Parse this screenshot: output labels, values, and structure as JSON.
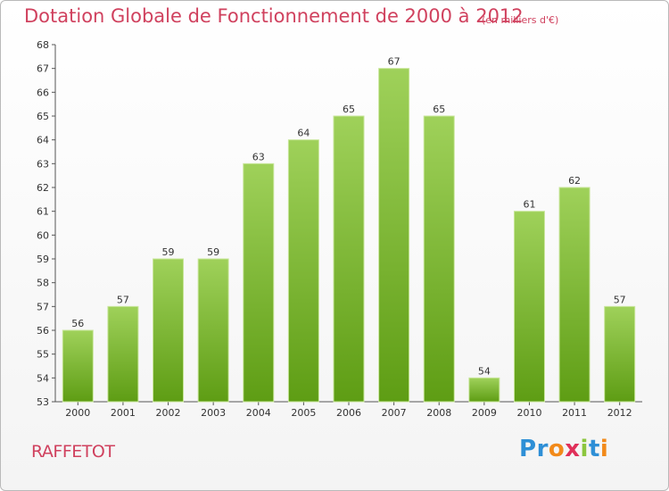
{
  "header": {
    "title": "Dotation Globale de Fonctionnement de 2000 à 2012",
    "subtitle": "(en milliers d'€)"
  },
  "footer": {
    "place": "RAFFETOT",
    "logo": [
      "P",
      "r",
      "o",
      "x",
      "i",
      "t",
      "i"
    ],
    "logo_colors": [
      "#2e8fd6",
      "#2e8fd6",
      "#f28a1a",
      "#e0305a",
      "#8cc63f",
      "#2e8fd6",
      "#f28a1a"
    ]
  },
  "chart_data": {
    "type": "bar",
    "title": "Dotation Globale de Fonctionnement de 2000 à 2012",
    "subtitle": "(en milliers d'€)",
    "xlabel": "",
    "ylabel": "",
    "categories": [
      "2000",
      "2001",
      "2002",
      "2003",
      "2004",
      "2005",
      "2006",
      "2007",
      "2008",
      "2009",
      "2010",
      "2011",
      "2012"
    ],
    "values": [
      56,
      57,
      59,
      59,
      63,
      64,
      65,
      67,
      65,
      54,
      61,
      62,
      57
    ],
    "ylim": [
      53,
      68
    ],
    "yticks": [
      53,
      54,
      55,
      56,
      57,
      58,
      59,
      60,
      61,
      62,
      63,
      64,
      65,
      66,
      67,
      68
    ],
    "grid": false,
    "bar_color_top": "#9fd15a",
    "bar_color_bottom": "#5e9d14"
  }
}
